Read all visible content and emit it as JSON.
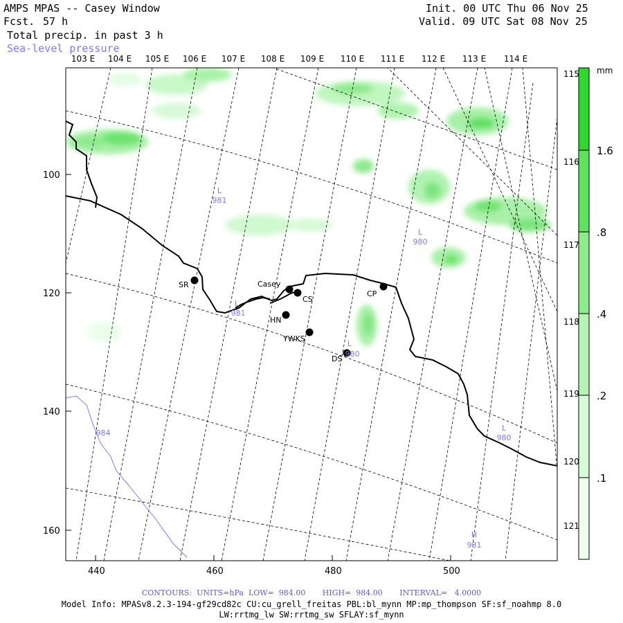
{
  "header": {
    "title": "AMPS MPAS -- Casey Window",
    "fcst_label": "Fcst.",
    "fcst_value": "57 h",
    "field": "Total precip. in past 3 h",
    "overlay": "Sea-level pressure",
    "init": "Init. 00 UTC Thu 06 Nov 25",
    "valid": "Valid. 09 UTC Sat 08 Nov 25"
  },
  "map": {
    "top_lon_labels": [
      "103 E",
      "104 E",
      "105 E",
      "106 E",
      "107 E",
      "108 E",
      "109 E",
      "110 E",
      "111 E",
      "112 E",
      "113 E",
      "114 E"
    ],
    "right_lon_labels": [
      "115 E",
      "116 E",
      "117 E",
      "118 E",
      "119 E",
      "120 E",
      "121 E"
    ],
    "x_ticks": [
      "440",
      "460",
      "480",
      "500"
    ],
    "y_ticks": [
      "100",
      "120",
      "140",
      "160"
    ],
    "stations": [
      {
        "id": "SR",
        "label": "SR"
      },
      {
        "id": "casey",
        "label": "Casey"
      },
      {
        "id": "CS",
        "label": "CS"
      },
      {
        "id": "HN",
        "label": "HN"
      },
      {
        "id": "YWKS",
        "label": "YWKS"
      },
      {
        "id": "DS",
        "label": "DS"
      },
      {
        "id": "CP",
        "label": "CP"
      }
    ],
    "pressure_labels": [
      {
        "letter": "L",
        "value": "981"
      },
      {
        "letter": "L",
        "value": "980"
      },
      {
        "letter": "L",
        "value": "981"
      },
      {
        "letter": "L",
        "value": "980"
      },
      {
        "letter": "L",
        "value": "980"
      },
      {
        "letter": "H",
        "value": "981"
      }
    ],
    "contour_984_label": "984"
  },
  "colorbar": {
    "unit": "mm",
    "labels": [
      "1.6",
      ".8",
      ".4",
      ".2",
      ".1"
    ],
    "colors": [
      "#ffffff",
      "#eeffee",
      "#d6fbd6",
      "#b4f5b4",
      "#8ced8c",
      "#5ee35e",
      "#2fd82f"
    ]
  },
  "footer": {
    "contours_line": "CONTOURS:  UNITS=hPa  LOW=  984.00       HIGH=  984.00       INTERVAL=   4.0000",
    "model_info_1": "Model Info: MPASv8.2.3-194-gf29cd82c CU:cu_grell_freitas PBL:bl_mynn MP:mp_thompson SF:sf_noahmp 8.0",
    "model_info_2": "LW:rrtmg_lw SW:rrtmg_sw SFLAY:sf_mynn"
  },
  "colors": {
    "contour_blue": "#7b7bff",
    "coast": "#000000",
    "gridline": "#000000"
  }
}
